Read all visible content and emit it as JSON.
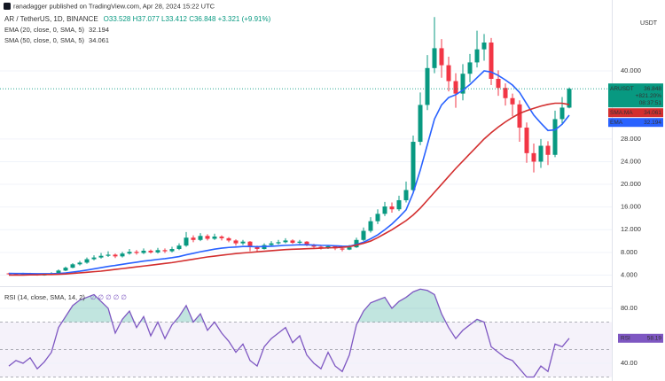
{
  "header": {
    "published": "ranadagger published on TradingView.com, Apr 28, 2024 15:22 UTC"
  },
  "chart_data": [
    {
      "type": "candlestick",
      "title": "AR / TetherUS, 1D, BINANCE",
      "ohlc_text": "O33.528 H37.077 L33.412 C36.848 +3.321 (+9.91%)",
      "y_unit": "USDT",
      "up_color": "#089981",
      "down_color": "#f23645",
      "open": [
        4.3,
        4.2,
        4.1,
        4.3,
        4.2,
        4.0,
        4.1,
        4.3,
        4.8,
        5.3,
        5.9,
        6.2,
        6.8,
        7.1,
        7.4,
        7.6,
        7.3,
        7.8,
        8.1,
        7.9,
        8.3,
        8.0,
        8.4,
        8.2,
        8.6,
        9.2,
        10.6,
        10.2,
        10.9,
        10.4,
        10.8,
        10.5,
        10.1,
        9.6,
        9.9,
        9.0,
        8.6,
        9.3,
        9.6,
        9.8,
        10.1,
        9.7,
        9.9,
        9.3,
        9.0,
        8.8,
        9.1,
        8.7,
        8.5,
        8.9,
        10.2,
        11.8,
        13.5,
        14.8,
        16.1,
        15.6,
        17.2,
        19.0,
        27.5,
        34.0,
        40.5,
        44.0,
        41.0,
        38.2,
        36.0,
        39.5,
        41.5,
        43.8,
        45.0,
        38.6,
        37.0,
        35.2,
        34.1,
        30.0,
        25.5,
        24.0,
        26.8,
        25.2,
        31.5,
        33.528
      ],
      "high": [
        4.4,
        4.3,
        4.4,
        4.4,
        4.3,
        4.2,
        4.5,
        5.0,
        5.5,
        6.1,
        6.5,
        7.1,
        7.5,
        7.9,
        8.2,
        7.8,
        8.1,
        8.6,
        8.4,
        8.7,
        8.5,
        8.8,
        8.7,
        9.0,
        9.6,
        11.6,
        11.0,
        11.4,
        11.2,
        11.3,
        11.0,
        10.7,
        10.3,
        10.2,
        10.0,
        9.2,
        9.6,
        10.0,
        10.2,
        10.5,
        10.3,
        10.2,
        10.0,
        9.5,
        9.2,
        9.3,
        9.2,
        8.9,
        9.3,
        10.6,
        12.4,
        14.2,
        15.6,
        16.9,
        16.8,
        18.0,
        20.5,
        28.6,
        36.2,
        42.8,
        49.5,
        45.6,
        42.5,
        39.6,
        41.2,
        43.0,
        47.1,
        46.5,
        45.8,
        40.1,
        37.8,
        36.0,
        34.8,
        30.9,
        27.2,
        28.0,
        27.6,
        33.0,
        35.4,
        37.077
      ],
      "low": [
        4.1,
        4.0,
        4.0,
        4.1,
        3.9,
        3.9,
        4.0,
        4.2,
        4.7,
        5.2,
        5.7,
        6.0,
        6.6,
        6.9,
        7.2,
        7.0,
        7.1,
        7.6,
        7.6,
        7.7,
        7.8,
        7.8,
        7.9,
        8.0,
        8.4,
        9.0,
        9.8,
        10.0,
        10.1,
        10.2,
        10.1,
        9.8,
        9.2,
        9.3,
        8.2,
        8.1,
        8.5,
        9.1,
        9.4,
        9.6,
        9.5,
        9.5,
        9.1,
        8.8,
        8.5,
        8.6,
        8.4,
        8.2,
        8.4,
        8.8,
        10.0,
        11.5,
        13.0,
        14.4,
        15.0,
        15.3,
        16.8,
        18.7,
        26.9,
        33.1,
        39.6,
        38.8,
        36.4,
        33.5,
        34.8,
        38.0,
        40.6,
        41.8,
        37.5,
        35.6,
        33.9,
        32.0,
        27.5,
        23.8,
        22.1,
        22.9,
        23.4,
        24.8,
        30.5,
        33.412
      ],
      "close": [
        4.2,
        4.1,
        4.3,
        4.2,
        4.0,
        4.1,
        4.3,
        4.8,
        5.3,
        5.9,
        6.2,
        6.8,
        7.1,
        7.4,
        7.6,
        7.3,
        7.8,
        8.1,
        7.9,
        8.3,
        8.0,
        8.4,
        8.2,
        8.6,
        9.2,
        10.6,
        10.2,
        10.9,
        10.4,
        10.8,
        10.5,
        10.1,
        9.6,
        9.9,
        9.0,
        8.6,
        9.3,
        9.6,
        9.8,
        10.1,
        9.7,
        9.9,
        9.3,
        9.0,
        8.8,
        9.1,
        8.7,
        8.5,
        8.9,
        10.2,
        11.8,
        13.5,
        14.8,
        16.1,
        15.6,
        17.2,
        19.0,
        27.5,
        34.0,
        40.5,
        44.0,
        41.0,
        38.2,
        36.0,
        39.5,
        41.5,
        43.8,
        45.0,
        38.6,
        37.0,
        35.2,
        34.1,
        30.0,
        25.5,
        24.0,
        26.8,
        25.2,
        31.5,
        33.527,
        36.848
      ],
      "price_tag": {
        "name": "ARUSDT",
        "change": "+821.20%",
        "countdown": "08:37:51"
      },
      "series": [
        {
          "name": "EMA (20, close, 0, SMA, 5)",
          "tag": "EMA",
          "color": "#2962ff",
          "values": [
            4.3,
            4.29,
            4.28,
            4.27,
            4.25,
            4.24,
            4.24,
            4.29,
            4.38,
            4.53,
            4.69,
            4.89,
            5.1,
            5.32,
            5.53,
            5.7,
            5.9,
            6.1,
            6.27,
            6.46,
            6.6,
            6.77,
            6.9,
            7.07,
            7.27,
            7.58,
            7.83,
            8.12,
            8.34,
            8.57,
            8.75,
            8.88,
            8.95,
            9.04,
            9.04,
            9.0,
            9.04,
            9.09,
            9.16,
            9.25,
            9.29,
            9.35,
            9.34,
            9.3,
            9.25,
            9.23,
            9.17,
            9.1,
            9.08,
            9.4,
            9.8,
            10.4,
            11.1,
            12.0,
            13.0,
            14.2,
            15.5,
            18.5,
            22.5,
            27.0,
            31.5,
            34.0,
            35.3,
            35.8,
            36.6,
            37.6,
            38.8,
            40.0,
            39.8,
            39.2,
            38.4,
            37.5,
            36.2,
            34.2,
            32.2,
            30.8,
            29.5,
            29.6,
            30.6,
            32.194
          ]
        },
        {
          "name": "SMA (50, close, 0, SMA, 5)",
          "tag": "SMA:MA",
          "color": "#d32f2f",
          "values": [
            4.0,
            4.0,
            4.0,
            4.05,
            4.05,
            4.1,
            4.1,
            4.15,
            4.2,
            4.3,
            4.4,
            4.5,
            4.6,
            4.7,
            4.85,
            5.0,
            5.15,
            5.3,
            5.45,
            5.6,
            5.75,
            5.9,
            6.05,
            6.2,
            6.4,
            6.6,
            6.8,
            7.0,
            7.2,
            7.35,
            7.5,
            7.65,
            7.8,
            7.9,
            8.0,
            8.1,
            8.2,
            8.3,
            8.4,
            8.5,
            8.55,
            8.6,
            8.65,
            8.7,
            8.75,
            8.8,
            8.85,
            8.9,
            9.0,
            9.3,
            9.6,
            10.0,
            10.6,
            11.3,
            12.0,
            12.8,
            13.6,
            14.6,
            15.8,
            17.2,
            18.6,
            20.0,
            21.4,
            22.8,
            24.1,
            25.4,
            26.7,
            28.0,
            29.1,
            30.1,
            31.0,
            31.8,
            32.5,
            33.0,
            33.4,
            33.8,
            34.1,
            34.3,
            34.3,
            34.061
          ]
        }
      ],
      "ylim": [
        2.2,
        52.5
      ],
      "yticks": [
        {
          "value": 4,
          "label": "4.000"
        },
        {
          "value": 8,
          "label": "8.000"
        },
        {
          "value": 12,
          "label": "12.000"
        },
        {
          "value": 16,
          "label": "16.000"
        },
        {
          "value": 20,
          "label": "20.000"
        },
        {
          "value": 24,
          "label": "24.000"
        },
        {
          "value": 28,
          "label": "28.000"
        },
        {
          "value": 40,
          "label": "40.000"
        }
      ],
      "grid": true
    },
    {
      "type": "line",
      "title": "RSI (14, close, SMA, 14, 2)",
      "title_extra": "∅ ∅ ∅ ∅ ∅",
      "series": [
        {
          "name": "RSI",
          "color": "#7e57c2",
          "values": [
            38,
            42,
            40,
            44,
            36,
            41,
            48,
            66,
            74,
            82,
            86,
            88,
            90,
            85,
            80,
            62,
            72,
            78,
            66,
            74,
            60,
            70,
            58,
            68,
            74,
            82,
            70,
            76,
            64,
            70,
            62,
            56,
            48,
            54,
            42,
            38,
            52,
            58,
            62,
            66,
            55,
            60,
            46,
            40,
            36,
            48,
            38,
            34,
            46,
            68,
            78,
            84,
            86,
            88,
            80,
            85,
            88,
            92,
            94,
            93,
            90,
            76,
            66,
            58,
            64,
            68,
            72,
            70,
            52,
            48,
            44,
            42,
            36,
            30,
            30,
            38,
            34,
            54,
            52,
            58.19
          ]
        }
      ],
      "levels": [
        70,
        50,
        30
      ],
      "ylim": [
        27.1,
        94.8
      ],
      "yticks": [
        {
          "value": 80,
          "label": "80.00"
        },
        {
          "value": 40,
          "label": "40.00"
        }
      ],
      "grid": true
    }
  ]
}
